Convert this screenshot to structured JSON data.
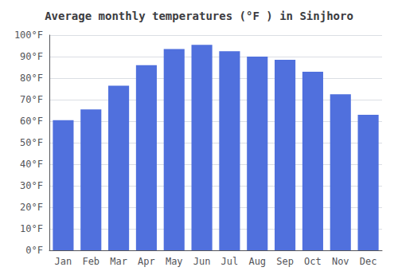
{
  "chart_data": {
    "type": "bar",
    "title": "Average monthly temperatures (°F ) in Sinjhoro",
    "categories": [
      "Jan",
      "Feb",
      "Mar",
      "Apr",
      "May",
      "Jun",
      "Jul",
      "Aug",
      "Sep",
      "Oct",
      "Nov",
      "Dec"
    ],
    "values": [
      60.5,
      65.5,
      76.5,
      86.0,
      93.5,
      95.5,
      92.5,
      90.0,
      88.5,
      83.0,
      72.5,
      63.0
    ],
    "ylim": [
      0,
      100
    ],
    "yticks": [
      {
        "value": 0,
        "label": "0°F"
      },
      {
        "value": 10,
        "label": "10°F"
      },
      {
        "value": 20,
        "label": "20°F"
      },
      {
        "value": 30,
        "label": "30°F"
      },
      {
        "value": 40,
        "label": "40°F"
      },
      {
        "value": 50,
        "label": "50°F"
      },
      {
        "value": 60,
        "label": "60°F"
      },
      {
        "value": 70,
        "label": "70°F"
      },
      {
        "value": 80,
        "label": "80°F"
      },
      {
        "value": 90,
        "label": "90°F"
      },
      {
        "value": 100,
        "label": "100°F"
      }
    ],
    "grid": true
  }
}
